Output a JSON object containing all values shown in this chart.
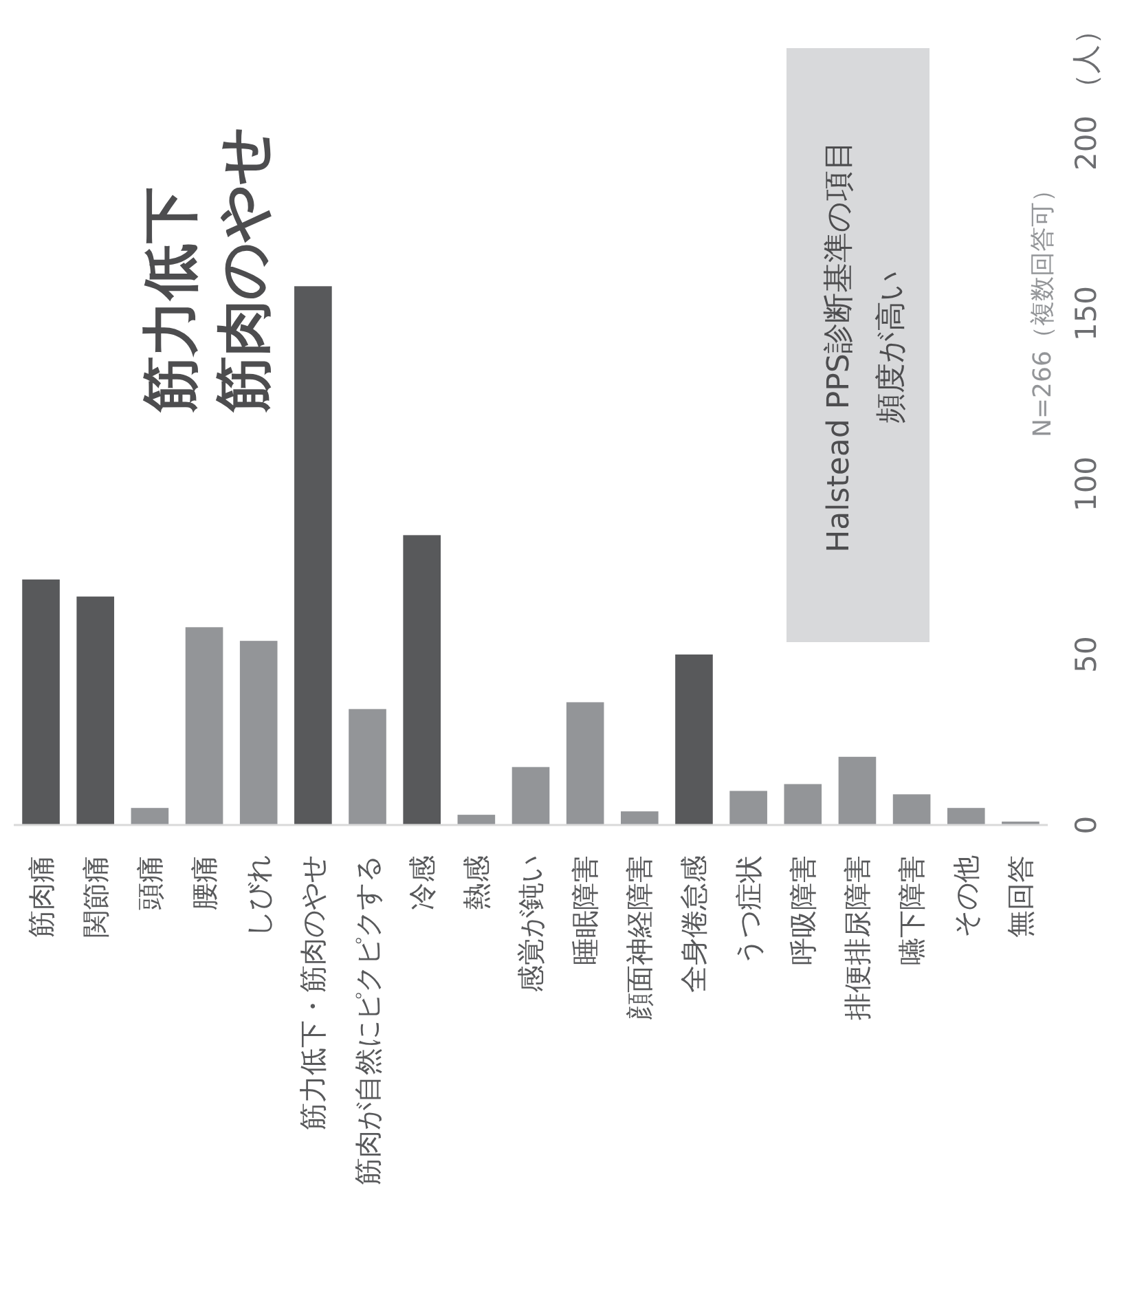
{
  "chart_data": {
    "type": "bar",
    "categories": [
      "筋肉痛",
      "関節痛",
      "頭痛",
      "腰痛",
      "しびれ",
      "筋力低下・筋肉のやせ",
      "筋肉が自然にピクピクする",
      "冷感",
      "熱感",
      "感覚が鈍い",
      "睡眠障害",
      "顔面神経障害",
      "全身倦怠感",
      "うつ症状",
      "呼吸障害",
      "排便排尿障害",
      "嚥下障害",
      "その他",
      "無回答"
    ],
    "values": [
      72,
      67,
      5,
      58,
      54,
      158,
      34,
      85,
      3,
      17,
      36,
      4,
      50,
      10,
      12,
      20,
      9,
      5,
      1
    ],
    "colors": [
      "#58595b",
      "#58595b",
      "#939598",
      "#939598",
      "#939598",
      "#58595b",
      "#939598",
      "#58595b",
      "#939598",
      "#939598",
      "#939598",
      "#939598",
      "#58595b",
      "#939598",
      "#939598",
      "#939598",
      "#939598",
      "#939598",
      "#939598"
    ],
    "ylim": [
      0,
      200
    ],
    "yticks": [
      0,
      50,
      100,
      150,
      200
    ],
    "ylabel": "（人）",
    "annotations": [
      "筋力低下",
      "筋肉のやせ",
      "Halstead PPS診断基準の項目",
      "頻度が高い",
      "N=266（複数回答可）"
    ]
  }
}
